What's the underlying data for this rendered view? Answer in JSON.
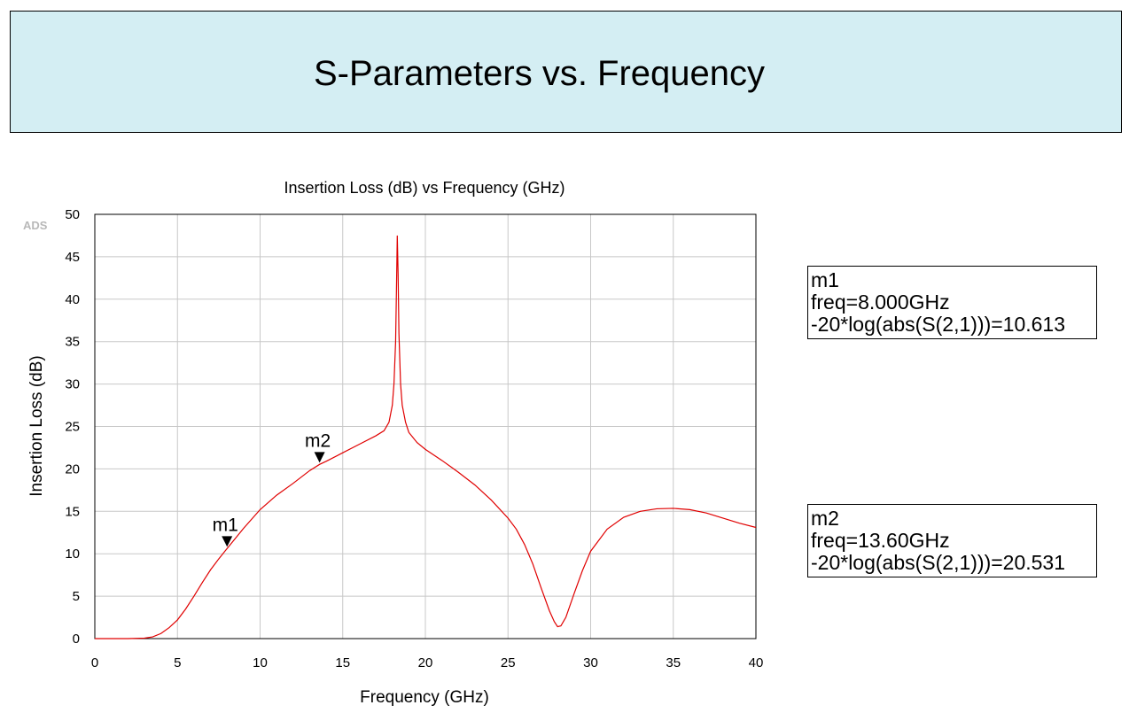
{
  "page": {
    "title": "S-Parameters vs. Frequency",
    "watermark": "ADS"
  },
  "chart_data": {
    "type": "line",
    "title": "Insertion Loss (dB) vs Frequency (GHz)",
    "xlabel": "Frequency (GHz)",
    "ylabel": "Insertion Loss (dB)",
    "xlim": [
      0,
      40
    ],
    "ylim": [
      0,
      50
    ],
    "xticks": [
      0,
      5,
      10,
      15,
      20,
      25,
      30,
      35,
      40
    ],
    "yticks": [
      0,
      5,
      10,
      15,
      20,
      25,
      30,
      35,
      40,
      45,
      50
    ],
    "grid": true,
    "legend": "none",
    "series": [
      {
        "color": "#e00000",
        "x": [
          0,
          1,
          2,
          3,
          3.5,
          4,
          4.5,
          5,
          5.5,
          6,
          6.5,
          7,
          7.5,
          8,
          9,
          10,
          11,
          12,
          13,
          13.6,
          14,
          15,
          16,
          17,
          17.5,
          17.8,
          18.0,
          18.1,
          18.2,
          18.25,
          18.3,
          18.35,
          18.4,
          18.5,
          18.6,
          18.8,
          19.0,
          19.5,
          20,
          21,
          22,
          23,
          24,
          25,
          25.5,
          26,
          26.5,
          27,
          27.5,
          27.8,
          28.0,
          28.2,
          28.5,
          29,
          29.5,
          30,
          31,
          32,
          33,
          34,
          35,
          36,
          37,
          38,
          39,
          40
        ],
        "y": [
          0,
          0,
          0,
          0.05,
          0.2,
          0.6,
          1.3,
          2.2,
          3.5,
          5,
          6.6,
          8.1,
          9.4,
          10.613,
          13,
          15.2,
          16.9,
          18.3,
          19.8,
          20.531,
          20.9,
          21.9,
          22.9,
          23.9,
          24.5,
          25.5,
          27.5,
          30,
          35,
          41,
          47.5,
          43,
          36,
          30,
          27.5,
          25.5,
          24.3,
          23.1,
          22.3,
          21,
          19.6,
          18.1,
          16.3,
          14.2,
          12.9,
          11.1,
          8.8,
          6,
          3.3,
          2.0,
          1.4,
          1.5,
          2.5,
          5.3,
          8,
          10.3,
          12.9,
          14.3,
          15.0,
          15.3,
          15.35,
          15.2,
          14.8,
          14.2,
          13.6,
          13.1
        ]
      }
    ],
    "markers": [
      {
        "label": "m1",
        "x": 8.0,
        "y": 10.613,
        "lines": [
          "m1",
          "freq=8.000GHz",
          "-20*log(abs(S(2,1)))=10.613"
        ]
      },
      {
        "label": "m2",
        "x": 13.6,
        "y": 20.531,
        "lines": [
          "m2",
          "freq=13.60GHz",
          "-20*log(abs(S(2,1)))=20.531"
        ]
      }
    ]
  }
}
